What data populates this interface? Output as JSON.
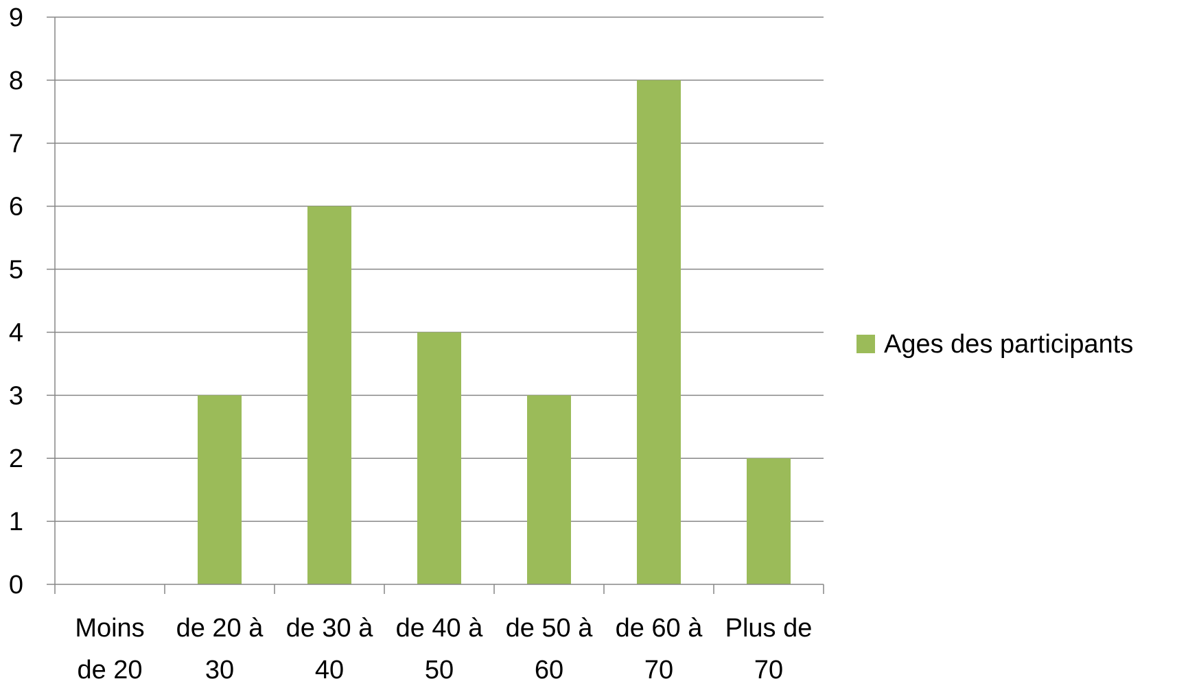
{
  "chart_data": {
    "type": "bar",
    "categories": [
      [
        "Moins",
        "de 20"
      ],
      [
        "de 20 à",
        "30"
      ],
      [
        "de 30 à",
        "40"
      ],
      [
        "de 40 à",
        "50"
      ],
      [
        "de 50 à",
        "60"
      ],
      [
        "de 60 à",
        "70"
      ],
      [
        "Plus de",
        "70"
      ]
    ],
    "series": [
      {
        "name": "Ages des participants",
        "values": [
          0,
          3,
          6,
          4,
          3,
          8,
          2
        ],
        "color": "#9BBB59"
      }
    ],
    "ylim": [
      0,
      9
    ],
    "yticks": [
      "0",
      "1",
      "2",
      "3",
      "4",
      "5",
      "6",
      "7",
      "8",
      "9"
    ],
    "grid": true,
    "legend_position": "right"
  }
}
